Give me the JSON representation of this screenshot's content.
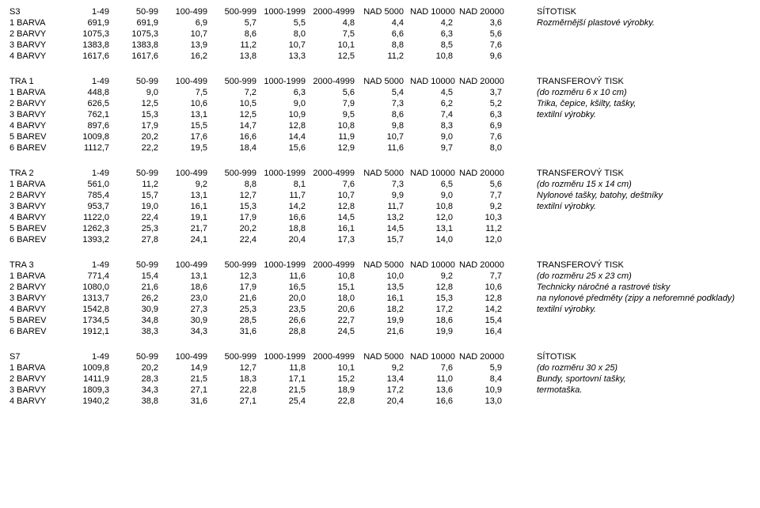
{
  "columns": [
    "1-49",
    "50-99",
    "100-499",
    "500-999",
    "1000-1999",
    "2000-4999",
    "NAD 5000",
    "NAD 10000",
    "NAD 20000"
  ],
  "tables": [
    {
      "code": "S3",
      "note_head": "SÍTOTISK",
      "rows": [
        {
          "label": "1 BARVA",
          "vals": [
            "691,9",
            "691,9",
            "6,9",
            "5,7",
            "5,5",
            "4,8",
            "4,4",
            "4,2",
            "3,6"
          ],
          "note": "Rozměrnější plastové výrobky."
        },
        {
          "label": "2 BARVY",
          "vals": [
            "1075,3",
            "1075,3",
            "10,7",
            "8,6",
            "8,0",
            "7,5",
            "6,6",
            "6,3",
            "5,6"
          ],
          "note": ""
        },
        {
          "label": "3 BARVY",
          "vals": [
            "1383,8",
            "1383,8",
            "13,9",
            "11,2",
            "10,7",
            "10,1",
            "8,8",
            "8,5",
            "7,6"
          ],
          "note": ""
        },
        {
          "label": "4 BARVY",
          "vals": [
            "1617,6",
            "1617,6",
            "16,2",
            "13,8",
            "13,3",
            "12,5",
            "11,2",
            "10,8",
            "9,6"
          ],
          "note": ""
        }
      ]
    },
    {
      "code": "TRA 1",
      "note_head": "TRANSFEROVÝ TISK",
      "rows": [
        {
          "label": "1 BARVA",
          "vals": [
            "448,8",
            "9,0",
            "7,5",
            "7,2",
            "6,3",
            "5,6",
            "5,4",
            "4,5",
            "3,7"
          ],
          "note": "(do rozměru 6 x 10 cm)"
        },
        {
          "label": "2 BARVY",
          "vals": [
            "626,5",
            "12,5",
            "10,6",
            "10,5",
            "9,0",
            "7,9",
            "7,3",
            "6,2",
            "5,2"
          ],
          "note": "Trika, čepice, kšilty, tašky,"
        },
        {
          "label": "3 BARVY",
          "vals": [
            "762,1",
            "15,3",
            "13,1",
            "12,5",
            "10,9",
            "9,5",
            "8,6",
            "7,4",
            "6,3"
          ],
          "note": "textilní výrobky."
        },
        {
          "label": "4 BARVY",
          "vals": [
            "897,6",
            "17,9",
            "15,5",
            "14,7",
            "12,8",
            "10,8",
            "9,8",
            "8,3",
            "6,9"
          ],
          "note": ""
        },
        {
          "label": "5 BAREV",
          "vals": [
            "1009,8",
            "20,2",
            "17,6",
            "16,6",
            "14,4",
            "11,9",
            "10,7",
            "9,0",
            "7,6"
          ],
          "note": ""
        },
        {
          "label": "6 BAREV",
          "vals": [
            "1112,7",
            "22,2",
            "19,5",
            "18,4",
            "15,6",
            "12,9",
            "11,6",
            "9,7",
            "8,0"
          ],
          "note": ""
        }
      ]
    },
    {
      "code": "TRA 2",
      "note_head": "TRANSFEROVÝ TISK",
      "rows": [
        {
          "label": "1 BARVA",
          "vals": [
            "561,0",
            "11,2",
            "9,2",
            "8,8",
            "8,1",
            "7,6",
            "7,3",
            "6,5",
            "5,6"
          ],
          "note": "(do rozměru 15 x 14 cm)"
        },
        {
          "label": "2 BARVY",
          "vals": [
            "785,4",
            "15,7",
            "13,1",
            "12,7",
            "11,7",
            "10,7",
            "9,9",
            "9,0",
            "7,7"
          ],
          "note": "Nylonové tašky, batohy, deštníky"
        },
        {
          "label": "3 BARVY",
          "vals": [
            "953,7",
            "19,0",
            "16,1",
            "15,3",
            "14,2",
            "12,8",
            "11,7",
            "10,8",
            "9,2"
          ],
          "note": "textilní výrobky."
        },
        {
          "label": "4 BARVY",
          "vals": [
            "1122,0",
            "22,4",
            "19,1",
            "17,9",
            "16,6",
            "14,5",
            "13,2",
            "12,0",
            "10,3"
          ],
          "note": ""
        },
        {
          "label": "5 BAREV",
          "vals": [
            "1262,3",
            "25,3",
            "21,7",
            "20,2",
            "18,8",
            "16,1",
            "14,5",
            "13,1",
            "11,2"
          ],
          "note": ""
        },
        {
          "label": "6 BAREV",
          "vals": [
            "1393,2",
            "27,8",
            "24,1",
            "22,4",
            "20,4",
            "17,3",
            "15,7",
            "14,0",
            "12,0"
          ],
          "note": ""
        }
      ]
    },
    {
      "code": "TRA 3",
      "note_head": "TRANSFEROVÝ TISK",
      "rows": [
        {
          "label": "1 BARVA",
          "vals": [
            "771,4",
            "15,4",
            "13,1",
            "12,3",
            "11,6",
            "10,8",
            "10,0",
            "9,2",
            "7,7"
          ],
          "note": "(do rozměru 25 x 23 cm)"
        },
        {
          "label": "2 BARVY",
          "vals": [
            "1080,0",
            "21,6",
            "18,6",
            "17,9",
            "16,5",
            "15,1",
            "13,5",
            "12,8",
            "10,6"
          ],
          "note": "Technicky náročné a rastrové tisky"
        },
        {
          "label": "3 BARVY",
          "vals": [
            "1313,7",
            "26,2",
            "23,0",
            "21,6",
            "20,0",
            "18,0",
            "16,1",
            "15,3",
            "12,8"
          ],
          "note": "na nylonové předměty (zipy a neforemné podklady)"
        },
        {
          "label": "4 BARVY",
          "vals": [
            "1542,8",
            "30,9",
            "27,3",
            "25,3",
            "23,5",
            "20,6",
            "18,2",
            "17,2",
            "14,2"
          ],
          "note": "textilní výrobky."
        },
        {
          "label": "5 BAREV",
          "vals": [
            "1734,5",
            "34,8",
            "30,9",
            "28,5",
            "26,6",
            "22,7",
            "19,9",
            "18,6",
            "15,4"
          ],
          "note": ""
        },
        {
          "label": "6 BAREV",
          "vals": [
            "1912,1",
            "38,3",
            "34,3",
            "31,6",
            "28,8",
            "24,5",
            "21,6",
            "19,9",
            "16,4"
          ],
          "note": ""
        }
      ]
    },
    {
      "code": "S7",
      "note_head": "SÍTOTISK",
      "rows": [
        {
          "label": "1 BARVA",
          "vals": [
            "1009,8",
            "20,2",
            "14,9",
            "12,7",
            "11,8",
            "10,1",
            "9,2",
            "7,6",
            "5,9"
          ],
          "note": "(do rozměru 30 x 25)"
        },
        {
          "label": "2 BARVY",
          "vals": [
            "1411,9",
            "28,3",
            "21,5",
            "18,3",
            "17,1",
            "15,2",
            "13,4",
            "11,0",
            "8,4"
          ],
          "note": "Bundy, sportovní tašky,"
        },
        {
          "label": "3 BARVY",
          "vals": [
            "1809,3",
            "34,3",
            "27,1",
            "22,8",
            "21,5",
            "18,9",
            "17,2",
            "13,6",
            "10,9"
          ],
          "note": "termotaška."
        },
        {
          "label": "4 BARVY",
          "vals": [
            "1940,2",
            "38,8",
            "31,6",
            "27,1",
            "25,4",
            "22,8",
            "20,4",
            "16,6",
            "13,0"
          ],
          "note": ""
        }
      ]
    }
  ]
}
